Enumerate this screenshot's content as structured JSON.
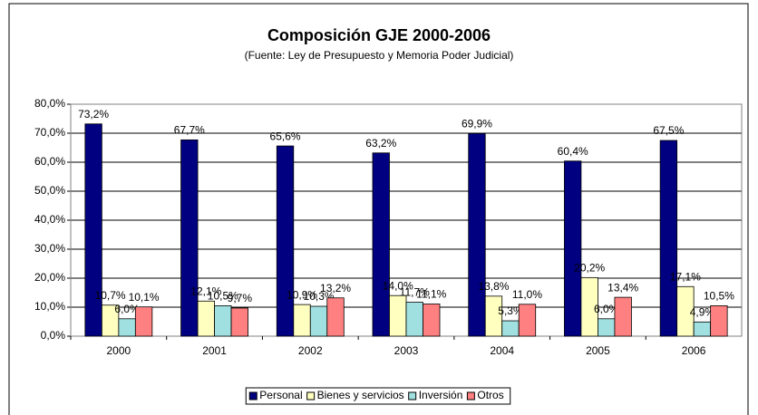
{
  "chart_data": {
    "type": "bar",
    "title": "Composición GJE 2000-2006",
    "subtitle": "(Fuente: Ley de Presupuesto y Memoria Poder Judicial)",
    "categories": [
      "2000",
      "2001",
      "2002",
      "2003",
      "2004",
      "2005",
      "2006"
    ],
    "series": [
      {
        "name": "Personal",
        "color": "#000080",
        "values": [
          73.2,
          67.7,
          65.6,
          63.2,
          69.9,
          60.4,
          67.5
        ],
        "value_labels": [
          "73,2%",
          "67,7%",
          "65,6%",
          "63,2%",
          "69,9%",
          "60,4%",
          "67,5%"
        ]
      },
      {
        "name": "Bienes y servicios",
        "color": "#ffffc0",
        "values": [
          10.7,
          12.1,
          10.9,
          14.0,
          13.8,
          20.2,
          17.1
        ],
        "value_labels": [
          "10,7%",
          "12,1%",
          "10,9%",
          "14,0%",
          "13,8%",
          "20,2%",
          "17,1%"
        ]
      },
      {
        "name": "Inversión",
        "color": "#a0e0e0",
        "values": [
          6.0,
          10.5,
          10.3,
          11.7,
          5.3,
          6.0,
          4.9
        ],
        "value_labels": [
          "6,0%",
          "10,5%",
          "10,3%",
          "11,7%",
          "5,3%",
          "6,0%",
          "4,9%"
        ]
      },
      {
        "name": "Otros",
        "color": "#ff8080",
        "values": [
          10.1,
          9.7,
          13.2,
          11.1,
          11.0,
          13.4,
          10.5
        ],
        "value_labels": [
          "10,1%",
          "9,7%",
          "13,2%",
          "11,1%",
          "11,0%",
          "13,4%",
          "10,5%"
        ]
      }
    ],
    "ylim": [
      0,
      80
    ],
    "yticks": [
      {
        "value": 0,
        "label": "0,0%"
      },
      {
        "value": 10,
        "label": "10,0%"
      },
      {
        "value": 20,
        "label": "20,0%"
      },
      {
        "value": 30,
        "label": "30,0%"
      },
      {
        "value": 40,
        "label": "40,0%"
      },
      {
        "value": 50,
        "label": "50,0%"
      },
      {
        "value": 60,
        "label": "60,0%"
      },
      {
        "value": 70,
        "label": "70,0%"
      },
      {
        "value": 80,
        "label": "80,0%"
      }
    ],
    "grid": true,
    "legend": "bottom"
  }
}
